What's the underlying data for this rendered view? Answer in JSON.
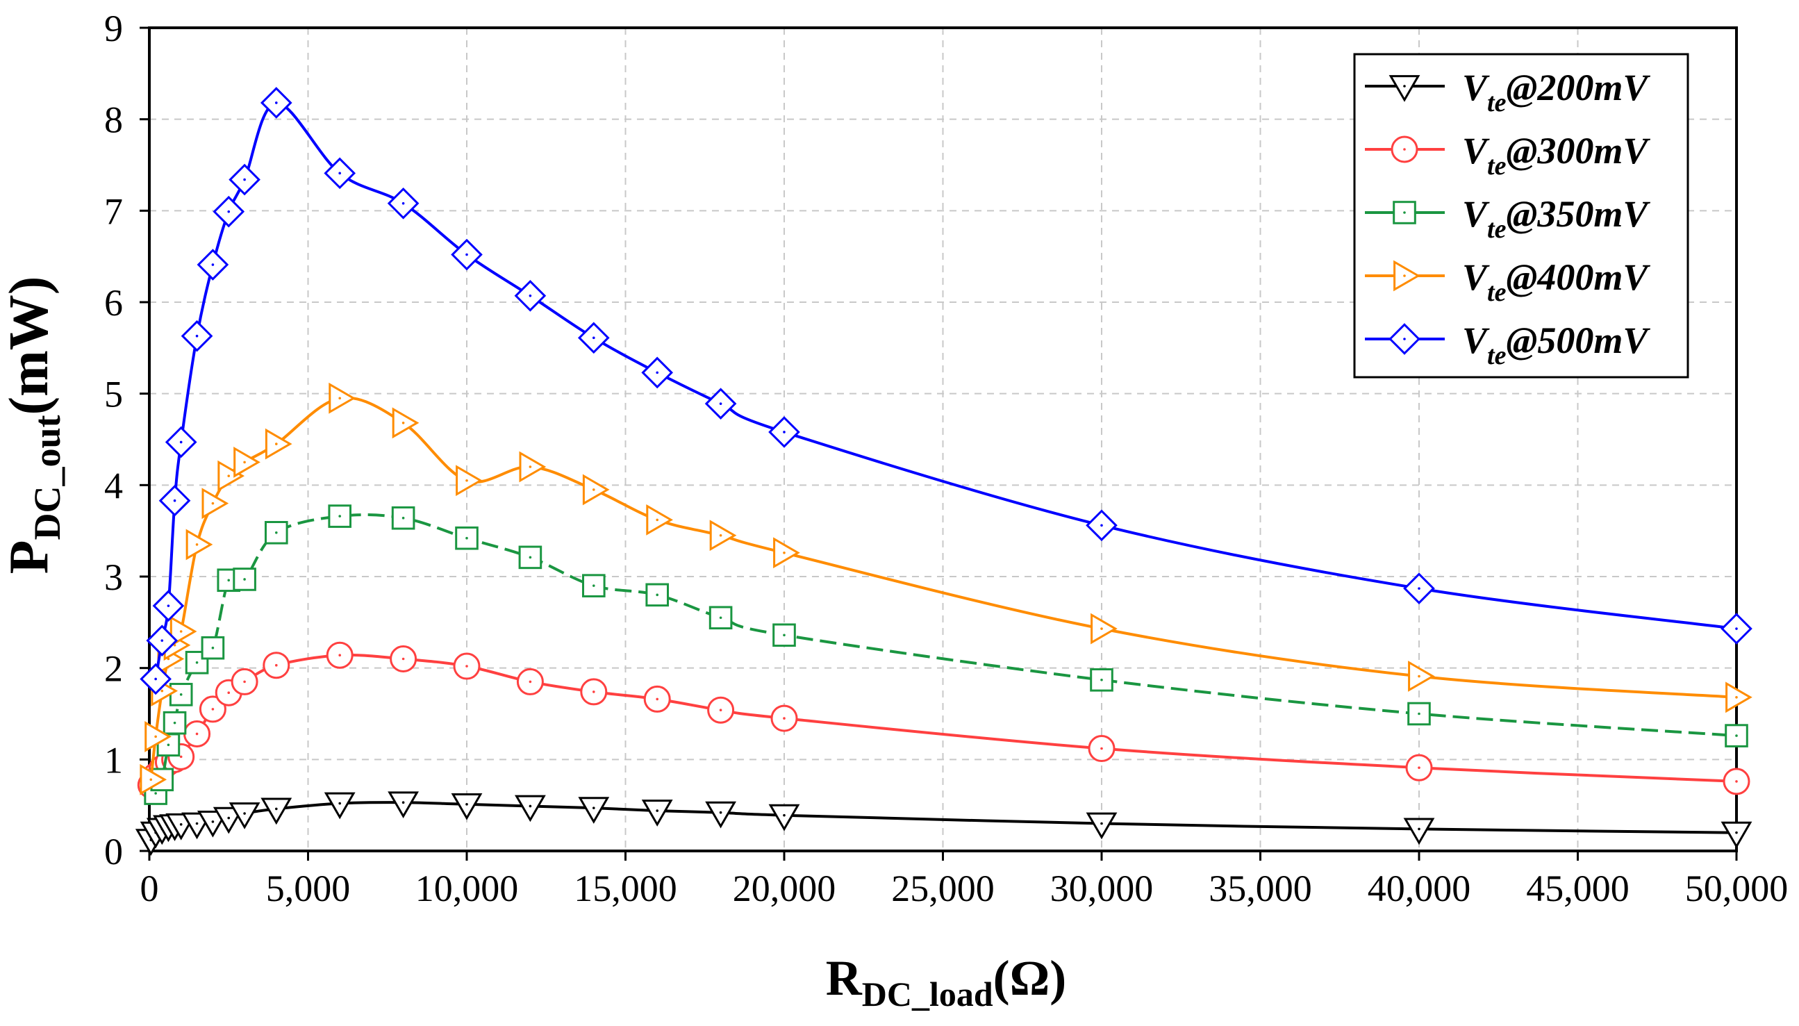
{
  "chart_data": {
    "type": "line",
    "xlabel": {
      "main": "R",
      "sub": "DC_load",
      "rest": "(Ω)"
    },
    "ylabel": {
      "main": "P",
      "sub": "DC_out",
      "rest": "(mW)"
    },
    "xlim": [
      0,
      50000
    ],
    "ylim": [
      0,
      9
    ],
    "grid": true,
    "legend_position": "top-right",
    "x_ticks": [
      0,
      5000,
      10000,
      15000,
      20000,
      25000,
      30000,
      35000,
      40000,
      45000,
      50000
    ],
    "x_tick_labels": [
      "0",
      "5,000",
      "10,000",
      "15,000",
      "20,000",
      "25,000",
      "30,000",
      "35,000",
      "40,000",
      "45,000",
      "50,000"
    ],
    "y_ticks": [
      0,
      1,
      2,
      3,
      4,
      5,
      6,
      7,
      8,
      9
    ],
    "y_tick_labels": [
      "0",
      "1",
      "2",
      "3",
      "4",
      "5",
      "6",
      "7",
      "8",
      "9"
    ],
    "series": [
      {
        "name": "V_te@200mV",
        "label_main": "V",
        "label_sub": "te",
        "label_rest": "@200mV",
        "color": "#000000",
        "marker": "triangle-down",
        "x": [
          50,
          200,
          400,
          600,
          800,
          1000,
          1500,
          2000,
          2500,
          3000,
          4000,
          6000,
          8000,
          10000,
          12000,
          14000,
          16000,
          18000,
          20000,
          30000,
          40000,
          50000
        ],
        "y": [
          0.12,
          0.2,
          0.24,
          0.27,
          0.28,
          0.29,
          0.3,
          0.32,
          0.36,
          0.41,
          0.46,
          0.52,
          0.53,
          0.51,
          0.49,
          0.47,
          0.44,
          0.42,
          0.39,
          0.3,
          0.24,
          0.2
        ]
      },
      {
        "name": "V_te@300mV",
        "label_main": "V",
        "label_sub": "te",
        "label_rest": "@300mV",
        "color": "#ff4040",
        "marker": "circle",
        "x": [
          50,
          200,
          400,
          600,
          800,
          1000,
          1500,
          2000,
          2500,
          3000,
          4000,
          6000,
          8000,
          10000,
          12000,
          14000,
          16000,
          18000,
          20000,
          30000,
          40000,
          50000
        ],
        "y": [
          0.72,
          0.82,
          0.9,
          0.97,
          1.0,
          1.03,
          1.28,
          1.55,
          1.73,
          1.85,
          2.03,
          2.14,
          2.1,
          2.02,
          1.85,
          1.74,
          1.66,
          1.54,
          1.45,
          1.12,
          0.91,
          0.76
        ]
      },
      {
        "name": "V_te@350mV",
        "label_main": "V",
        "label_sub": "te",
        "label_rest": "@350mV",
        "color": "#1a9641",
        "marker": "square",
        "x": [
          200,
          400,
          600,
          800,
          1000,
          1500,
          2000,
          2500,
          3000,
          4000,
          6000,
          8000,
          10000,
          12000,
          14000,
          16000,
          18000,
          20000,
          30000,
          40000,
          50000
        ],
        "y": [
          0.63,
          0.78,
          1.16,
          1.4,
          1.71,
          2.06,
          2.22,
          2.96,
          2.97,
          3.48,
          3.66,
          3.64,
          3.42,
          3.21,
          2.9,
          2.8,
          2.55,
          2.36,
          1.87,
          1.5,
          1.26
        ]
      },
      {
        "name": "V_te@400mV",
        "label_main": "V",
        "label_sub": "te",
        "label_rest": "@400mV",
        "color": "#ff8c00",
        "marker": "triangle-right",
        "x": [
          50,
          200,
          400,
          600,
          800,
          1000,
          1500,
          2000,
          2500,
          3000,
          4000,
          6000,
          8000,
          10000,
          12000,
          14000,
          16000,
          18000,
          20000,
          30000,
          40000,
          50000
        ],
        "y": [
          0.78,
          1.25,
          1.75,
          2.1,
          2.25,
          2.4,
          3.35,
          3.8,
          4.1,
          4.25,
          4.45,
          4.95,
          4.68,
          4.05,
          4.2,
          3.95,
          3.62,
          3.45,
          3.26,
          2.43,
          1.91,
          1.68
        ]
      },
      {
        "name": "V_te@500mV",
        "label_main": "V",
        "label_sub": "te",
        "label_rest": "@500mV",
        "color": "#0000ff",
        "marker": "diamond",
        "x": [
          200,
          400,
          600,
          800,
          1000,
          1500,
          2000,
          2500,
          3000,
          4000,
          6000,
          8000,
          10000,
          12000,
          14000,
          16000,
          18000,
          20000,
          30000,
          40000,
          50000
        ],
        "y": [
          1.88,
          2.3,
          2.68,
          3.83,
          4.47,
          5.63,
          6.41,
          6.99,
          7.34,
          8.18,
          7.41,
          7.08,
          6.52,
          6.07,
          5.61,
          5.23,
          4.89,
          4.58,
          3.56,
          2.87,
          2.43
        ]
      }
    ]
  }
}
